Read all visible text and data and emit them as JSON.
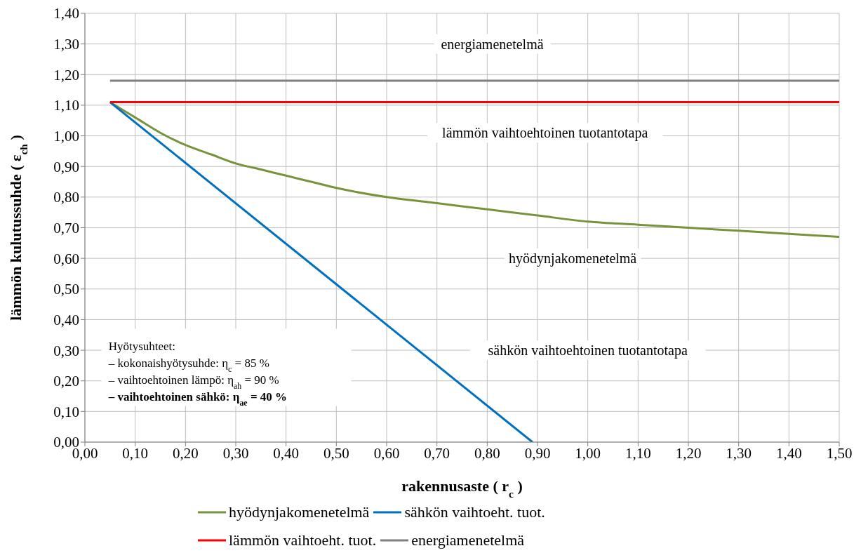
{
  "chart_data": {
    "type": "line",
    "xlabel": "rakennusaste ( r$_{c}$ )",
    "ylabel": "lämmön kulutussuhde ( ε$_{ch}$ )",
    "xlim": [
      0,
      1.5
    ],
    "ylim": [
      0,
      1.4
    ],
    "xticks": [
      {
        "value": 0,
        "label": "0,00"
      },
      {
        "value": 0.1,
        "label": "0,10"
      },
      {
        "value": 0.2,
        "label": "0,20"
      },
      {
        "value": 0.3,
        "label": "0,30"
      },
      {
        "value": 0.4,
        "label": "0,40"
      },
      {
        "value": 0.5,
        "label": "0,50"
      },
      {
        "value": 0.6,
        "label": "0,60"
      },
      {
        "value": 0.7,
        "label": "0,70"
      },
      {
        "value": 0.8,
        "label": "0,80"
      },
      {
        "value": 0.9,
        "label": "0,90"
      },
      {
        "value": 1,
        "label": "1,00"
      },
      {
        "value": 1.1,
        "label": "1,10"
      },
      {
        "value": 1.2,
        "label": "1,20"
      },
      {
        "value": 1.3,
        "label": "1,30"
      },
      {
        "value": 1.4,
        "label": "1,40"
      },
      {
        "value": 1.5,
        "label": "1,50"
      }
    ],
    "yticks": [
      {
        "value": 0,
        "label": "0,00"
      },
      {
        "value": 0.1,
        "label": "0,10"
      },
      {
        "value": 0.2,
        "label": "0,20"
      },
      {
        "value": 0.3,
        "label": "0,30"
      },
      {
        "value": 0.4,
        "label": "0,40"
      },
      {
        "value": 0.5,
        "label": "0,50"
      },
      {
        "value": 0.6,
        "label": "0,60"
      },
      {
        "value": 0.7,
        "label": "0,70"
      },
      {
        "value": 0.8,
        "label": "0,80"
      },
      {
        "value": 0.9,
        "label": "0,90"
      },
      {
        "value": 1,
        "label": "1,00"
      },
      {
        "value": 1.1,
        "label": "1,10"
      },
      {
        "value": 1.2,
        "label": "1,20"
      },
      {
        "value": 1.3,
        "label": "1,30"
      },
      {
        "value": 1.4,
        "label": "1,40"
      }
    ],
    "grid": true,
    "legend": "bottom",
    "series": [
      {
        "name": "hyödynjakomenetelmä",
        "color": "#77933c",
        "x": [
          0.05,
          0.08,
          0.1,
          0.15,
          0.2,
          0.25,
          0.3,
          0.35,
          0.4,
          0.45,
          0.5,
          0.6,
          0.7,
          0.8,
          0.9,
          1.0,
          1.1,
          1.2,
          1.3,
          1.4,
          1.5
        ],
        "values": [
          1.11,
          1.08,
          1.06,
          1.01,
          0.97,
          0.94,
          0.91,
          0.89,
          0.87,
          0.85,
          0.83,
          0.8,
          0.78,
          0.76,
          0.74,
          0.72,
          0.71,
          0.7,
          0.69,
          0.68,
          0.67
        ]
      },
      {
        "name": "sähkön vaihtoeht. tuot.",
        "color": "#0070c0",
        "x": [
          0.05,
          0.89
        ],
        "values": [
          1.11,
          0
        ]
      },
      {
        "name": "lämmön vaihtoeht. tuot.",
        "color": "#ff0000",
        "x": [
          0.05,
          1.5
        ],
        "values": [
          1.11,
          1.11
        ]
      },
      {
        "name": "energiamenetelmä",
        "color": "#808080",
        "x": [
          0.05,
          1.5
        ],
        "values": [
          1.18,
          1.18
        ]
      }
    ],
    "annotations": [
      "energiamenetelmä",
      "lämmön vaihtoehtoinen tuotantotapa",
      "hyödynjakomenetelmä",
      "sähkön vaihtoehtoinen tuotantotapa",
      "Hyötysuhteet:",
      "– kokonaishyötysuhde: η$_{c}$ = 85 %",
      "– vaihtoehtoinen lämpö: η$_{ah}$ = 90 %",
      "– vaihtoehtoinen sähkö: η$_{ae}$ = 40 %"
    ]
  }
}
